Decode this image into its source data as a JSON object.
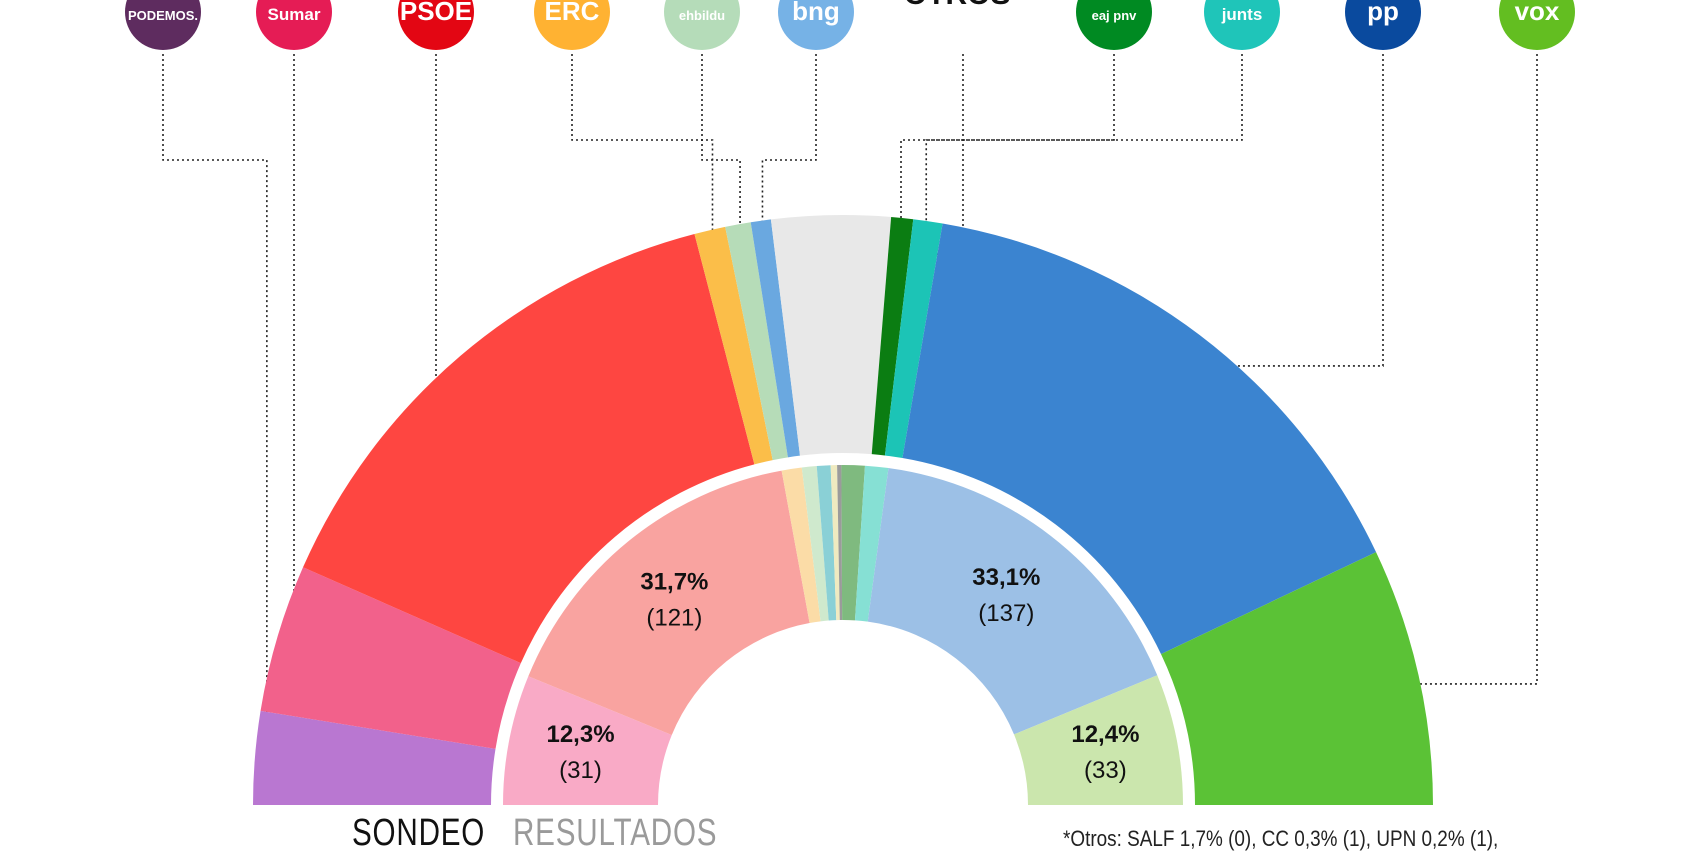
{
  "chart_data": {
    "type": "pie",
    "variant": "nested-semicircle",
    "legend": {
      "sondeo_label": "SONDEO",
      "resultados_label": "RESULTADOS"
    },
    "footnote": "*Otros: SALF 1,7% (0), CC 0,3% (1), UPN 0,2% (1),",
    "parties": [
      {
        "id": "podemos",
        "logo_text": "PODEMOS.",
        "logo_bg": "#5e2c5f",
        "logo_fg": "#ffffff"
      },
      {
        "id": "sumar",
        "logo_text": "Sumar",
        "logo_bg": "#e51c55",
        "logo_fg": "#ffffff"
      },
      {
        "id": "psoe",
        "logo_text": "PSOE",
        "logo_bg": "#e30613",
        "logo_fg": "#ffffff"
      },
      {
        "id": "erc",
        "logo_text": "ERC",
        "logo_bg": "#ffb232",
        "logo_fg": "#222222"
      },
      {
        "id": "ehbildu",
        "logo_text": "ehbildu",
        "logo_bg": "#b5dcb9",
        "logo_fg": "#ffffff"
      },
      {
        "id": "bng",
        "logo_text": "bng",
        "logo_bg": "#76b2e6",
        "logo_fg": "#ffffff"
      },
      {
        "id": "otros",
        "logo_text": "OTROS*",
        "logo_bg": "",
        "logo_fg": "#111111"
      },
      {
        "id": "pnv",
        "logo_text": "eaj pnv",
        "logo_bg": "#008a22",
        "logo_fg": "#ffffff"
      },
      {
        "id": "junts",
        "logo_text": "junts",
        "logo_bg": "#1fc5b9",
        "logo_fg": "#ffffff"
      },
      {
        "id": "pp",
        "logo_text": "pp",
        "logo_bg": "#0a4a9e",
        "logo_fg": "#ffffff"
      },
      {
        "id": "vox",
        "logo_text": "vox",
        "logo_bg": "#63be21",
        "logo_fg": "#ffffff"
      }
    ],
    "series": [
      {
        "name": "SONDEO",
        "slices": [
          {
            "party": "podemos",
            "value": 5.1,
            "color": "#b977d1"
          },
          {
            "party": "sumar",
            "value": 8.1,
            "color": "#f2618b"
          },
          {
            "party": "psoe",
            "value": 28.7,
            "color": "#fe4641"
          },
          {
            "party": "erc",
            "value": 1.7,
            "color": "#fbbe49"
          },
          {
            "party": "ehbildu",
            "value": 1.4,
            "color": "#b6dcb8"
          },
          {
            "party": "bng",
            "value": 1.1,
            "color": "#6aa8e0"
          },
          {
            "party": "otros",
            "value": 6.5,
            "color": "#e8e8e8"
          },
          {
            "party": "pnv",
            "value": 1.2,
            "color": "#0b7d12"
          },
          {
            "party": "junts",
            "value": 1.6,
            "color": "#1cc4b6"
          },
          {
            "party": "pp",
            "value": 30.5,
            "color": "#3b84d0"
          },
          {
            "party": "vox",
            "value": 14.1,
            "color": "#5bc236"
          }
        ]
      },
      {
        "name": "RESULTADOS",
        "slices": [
          {
            "party": "podemos",
            "value": 12.3,
            "seats": "(31)",
            "label": "12,3%",
            "color": "#f9aac6"
          },
          {
            "party": "sumar",
            "value": 0.0,
            "color": "#f9aac6"
          },
          {
            "party": "psoe",
            "value": 31.7,
            "seats": "(121)",
            "label": "31,7%",
            "color": "#f9a3a0"
          },
          {
            "party": "erc",
            "value": 1.9,
            "color": "#fbdca7"
          },
          {
            "party": "ehbildu",
            "value": 1.4,
            "color": "#cfe9cd"
          },
          {
            "party": "bng",
            "value": 1.3,
            "color": "#8ad0d6"
          },
          {
            "party": "otros",
            "value": 0.6,
            "color": "#efeac0"
          },
          {
            "party": "otros2",
            "value": 0.4,
            "color": "#9b9b9b"
          },
          {
            "party": "pnv",
            "value": 2.2,
            "color": "#7fba7f"
          },
          {
            "party": "junts",
            "value": 2.2,
            "color": "#86e0d4"
          },
          {
            "party": "pp",
            "value": 33.1,
            "seats": "(137)",
            "label": "33,1%",
            "color": "#9cc0e6"
          },
          {
            "party": "vox",
            "value": 12.4,
            "seats": "(33)",
            "label": "12,4%",
            "color": "#cbe6ad"
          }
        ]
      }
    ]
  }
}
